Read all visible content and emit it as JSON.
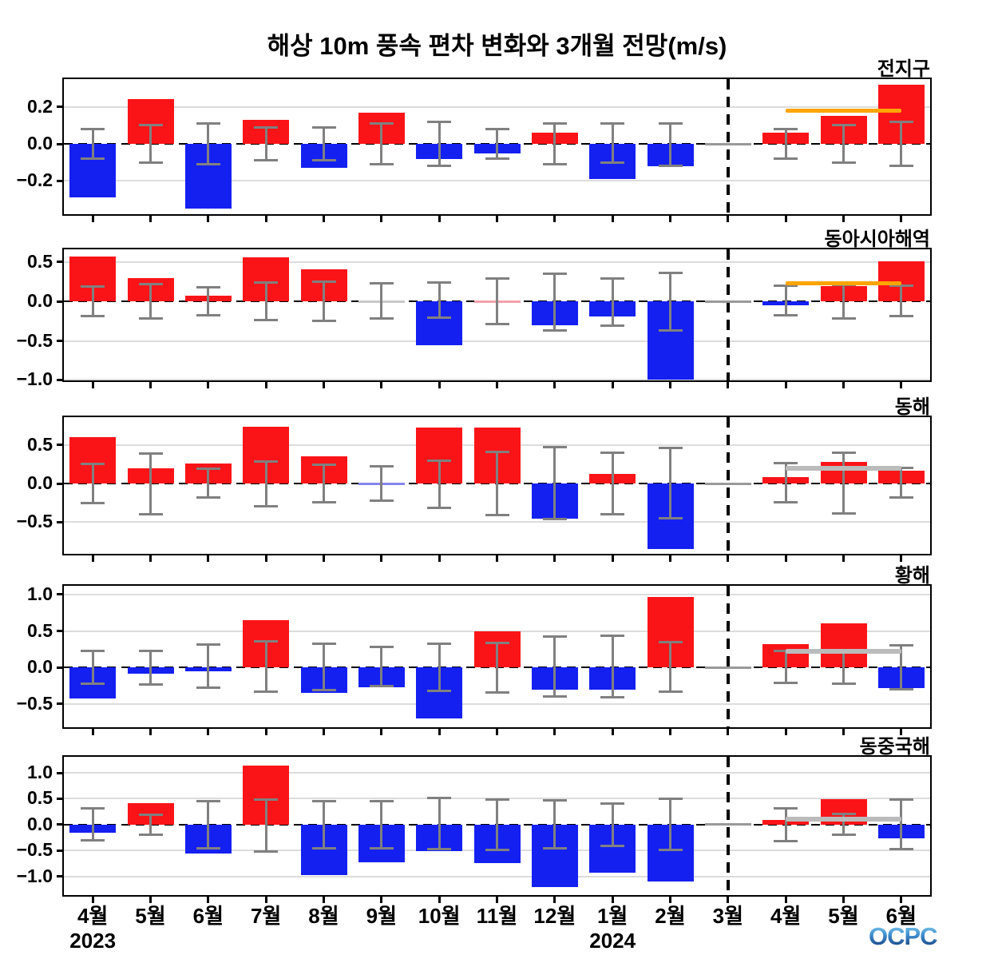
{
  "logo": "OCPC",
  "chart_data": {
    "type": "bar",
    "title": "해상 10m 풍속 편차 변화와 3개월 전망(m/s)",
    "unit": "m/s",
    "months": [
      "4월",
      "5월",
      "6월",
      "7월",
      "8월",
      "9월",
      "10월",
      "11월",
      "12월",
      "1월",
      "2월",
      "3월",
      "4월",
      "5월",
      "6월"
    ],
    "year_labels": [
      {
        "text": "2023",
        "month_index": 0
      },
      {
        "text": "2024",
        "month_index": 9
      }
    ],
    "forecast_separator_month_index": 11,
    "colors": {
      "positive_red": "#fa1418",
      "negative_blue": "#1420f0",
      "zero_gray": "#999999",
      "tiny_pink": "#f5a0ae",
      "tiny_lightblue": "#8585ee",
      "tiny_lightgray": "#c9c9c9",
      "error_bar_gray": "#808080",
      "forecast_orange": "#ffa500",
      "forecast_silver": "#bbbbbb",
      "gridline": "#dcdcdc"
    },
    "panels": [
      {
        "key": "global",
        "name": "전지구",
        "ylim": [
          -0.38,
          0.35
        ],
        "yticks": [
          0.2,
          0.0,
          -0.2
        ],
        "values": [
          -0.29,
          0.24,
          -0.35,
          0.13,
          -0.13,
          0.17,
          -0.08,
          -0.05,
          0.06,
          -0.19,
          -0.12,
          0.0,
          0.06,
          0.15,
          0.32
        ],
        "colors": [
          "blue",
          "red",
          "blue",
          "red",
          "blue",
          "red",
          "blue",
          "blue",
          "red",
          "blue",
          "blue",
          "gray",
          "red",
          "red",
          "red"
        ],
        "err_up": [
          0.08,
          0.1,
          0.11,
          0.09,
          0.09,
          0.11,
          0.12,
          0.08,
          0.11,
          0.11,
          0.11,
          null,
          0.08,
          0.1,
          0.12
        ],
        "err_dn": [
          0.08,
          0.1,
          0.11,
          0.09,
          0.09,
          0.11,
          0.12,
          0.08,
          0.11,
          0.1,
          0.12,
          null,
          0.08,
          0.1,
          0.12
        ],
        "forecast_line": {
          "value": 0.18,
          "color": "orange",
          "from_month_index": 12,
          "to_month_index": 14
        }
      },
      {
        "key": "east-asia-seas",
        "name": "동아시아해역",
        "ylim": [
          -1.0,
          0.66
        ],
        "yticks": [
          0.5,
          0.0,
          -0.5,
          -1.0
        ],
        "values": [
          0.57,
          0.3,
          0.07,
          0.56,
          0.41,
          0.0,
          -0.55,
          0.01,
          -0.3,
          -0.19,
          -0.99,
          0.0,
          -0.05,
          0.19,
          0.51
        ],
        "colors": [
          "red",
          "red",
          "red",
          "red",
          "red",
          "lightgray",
          "blue",
          "pink",
          "blue",
          "blue",
          "blue",
          "gray",
          "blue",
          "red",
          "red"
        ],
        "err_up": [
          0.19,
          0.22,
          0.18,
          0.24,
          0.25,
          0.23,
          0.24,
          0.29,
          0.35,
          0.29,
          0.36,
          null,
          0.2,
          0.21,
          0.2
        ],
        "err_dn": [
          0.19,
          0.22,
          0.18,
          0.24,
          0.25,
          0.22,
          0.21,
          0.29,
          0.37,
          0.31,
          0.37,
          null,
          0.18,
          0.22,
          0.19
        ],
        "forecast_line": {
          "value": 0.23,
          "color": "orange",
          "from_month_index": 12,
          "to_month_index": 14
        }
      },
      {
        "key": "east-sea",
        "name": "동해",
        "ylim": [
          -0.91,
          0.86
        ],
        "yticks": [
          0.5,
          0.0,
          -0.5
        ],
        "values": [
          0.6,
          0.2,
          0.26,
          0.74,
          0.35,
          -0.01,
          0.73,
          0.73,
          -0.45,
          0.12,
          -0.85,
          0.0,
          0.08,
          0.28,
          0.17
        ],
        "colors": [
          "red",
          "red",
          "red",
          "red",
          "red",
          "lightblue",
          "red",
          "red",
          "blue",
          "red",
          "blue",
          "gray",
          "red",
          "red",
          "red"
        ],
        "err_up": [
          0.25,
          0.39,
          0.19,
          0.29,
          0.24,
          0.22,
          0.3,
          0.41,
          0.47,
          0.4,
          0.46,
          null,
          0.26,
          0.4,
          0.2
        ],
        "err_dn": [
          0.25,
          0.4,
          0.18,
          0.29,
          0.24,
          0.22,
          0.31,
          0.41,
          0.46,
          0.4,
          0.45,
          null,
          0.24,
          0.39,
          0.18
        ],
        "forecast_line": {
          "value": 0.2,
          "color": "silver",
          "from_month_index": 12,
          "to_month_index": 14
        }
      },
      {
        "key": "yellow-sea",
        "name": "황해",
        "ylim": [
          -0.82,
          1.12
        ],
        "yticks": [
          1.0,
          0.5,
          0.0,
          -0.5
        ],
        "values": [
          -0.43,
          -0.09,
          -0.05,
          0.65,
          -0.35,
          -0.27,
          -0.7,
          0.5,
          -0.3,
          -0.31,
          0.97,
          0.0,
          0.32,
          0.61,
          -0.28
        ],
        "colors": [
          "blue",
          "blue",
          "blue",
          "red",
          "blue",
          "blue",
          "blue",
          "red",
          "blue",
          "blue",
          "red",
          "gray",
          "red",
          "red",
          "blue"
        ],
        "err_up": [
          0.23,
          0.23,
          0.31,
          0.36,
          0.32,
          0.28,
          0.33,
          0.34,
          0.42,
          0.43,
          0.35,
          null,
          0.23,
          0.22,
          0.3
        ],
        "err_dn": [
          0.22,
          0.23,
          0.28,
          0.33,
          0.31,
          0.26,
          0.32,
          0.34,
          0.4,
          0.41,
          0.33,
          null,
          0.21,
          0.22,
          0.3
        ],
        "forecast_line": {
          "value": 0.22,
          "color": "silver",
          "from_month_index": 12,
          "to_month_index": 14
        }
      },
      {
        "key": "east-china-sea",
        "name": "동중국해",
        "ylim": [
          -1.36,
          1.31
        ],
        "yticks": [
          1.0,
          0.5,
          0.0,
          -0.5,
          -1.0
        ],
        "values": [
          -0.16,
          0.41,
          -0.56,
          1.14,
          -0.97,
          -0.72,
          -0.51,
          -0.75,
          -1.2,
          -0.93,
          -1.1,
          0.0,
          0.09,
          0.49,
          -0.27
        ],
        "colors": [
          "blue",
          "red",
          "blue",
          "red",
          "blue",
          "blue",
          "blue",
          "blue",
          "blue",
          "blue",
          "blue",
          "gray",
          "red",
          "red",
          "blue"
        ],
        "err_up": [
          0.31,
          0.19,
          0.46,
          0.48,
          0.46,
          0.46,
          0.51,
          0.48,
          0.47,
          0.41,
          0.5,
          null,
          0.31,
          0.2,
          0.49
        ],
        "err_dn": [
          0.31,
          0.2,
          0.45,
          0.52,
          0.45,
          0.45,
          0.48,
          0.49,
          0.46,
          0.41,
          0.49,
          null,
          0.32,
          0.2,
          0.48
        ],
        "forecast_line": {
          "value": 0.11,
          "color": "silver",
          "from_month_index": 12,
          "to_month_index": 14
        }
      }
    ]
  }
}
